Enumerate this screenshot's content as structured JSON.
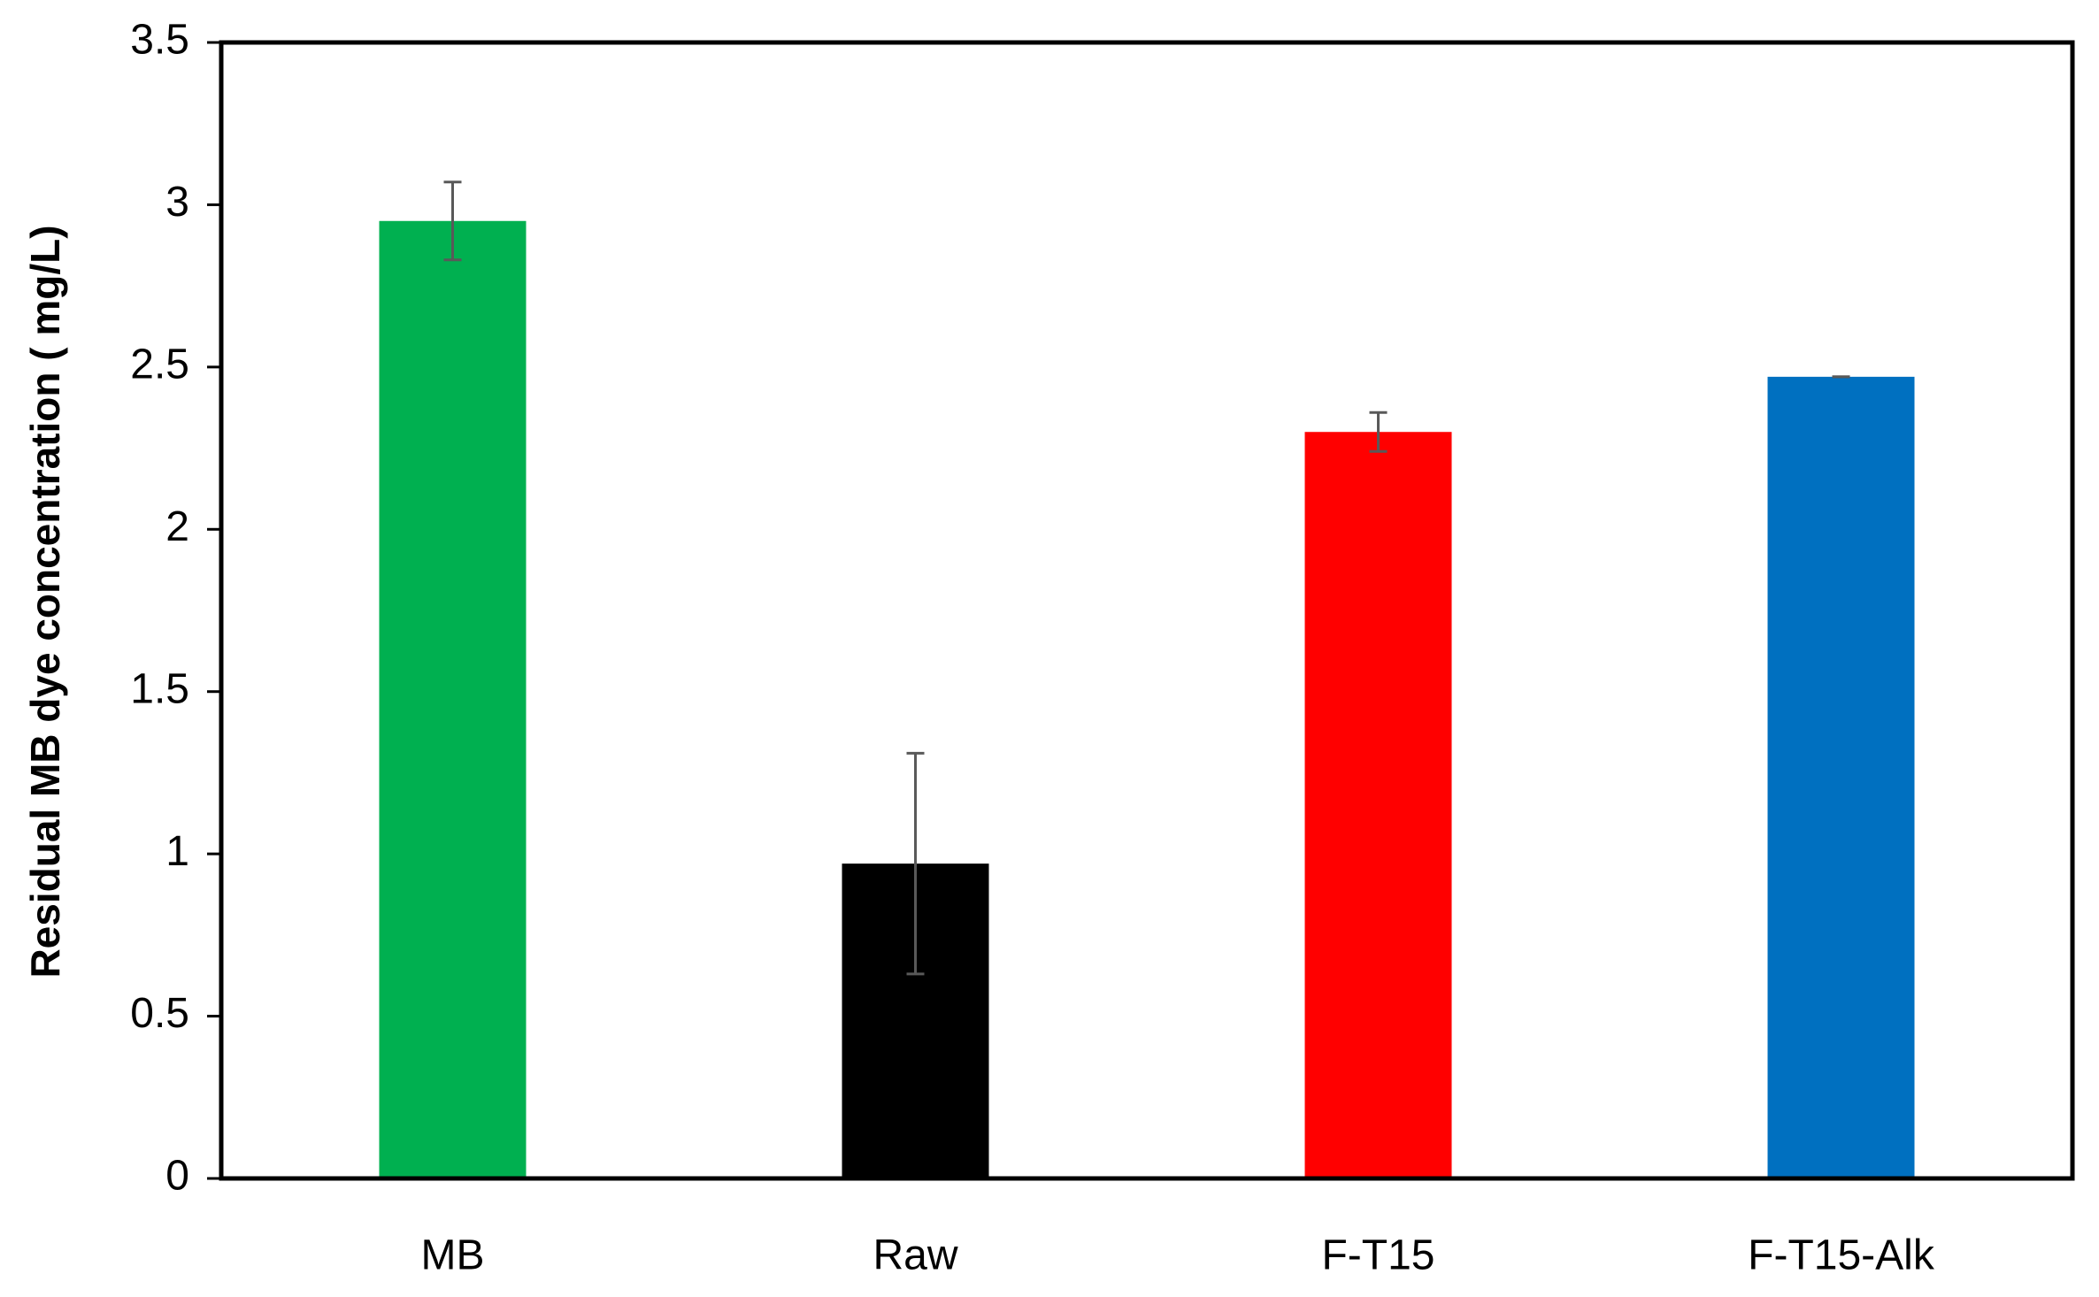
{
  "chart_data": {
    "type": "bar",
    "ylabel": "Residual MB dye concentration ( mg/L)",
    "categories": [
      "MB",
      "Raw",
      "F-T15",
      "F-T15-Alk"
    ],
    "values": [
      2.95,
      0.97,
      2.3,
      2.47
    ],
    "errors": [
      0.12,
      0.34,
      0.06,
      0
    ],
    "colors": [
      "#00b050",
      "#000000",
      "#ff0000",
      "#0070c0"
    ],
    "error_color": "#595959",
    "ylim": [
      0,
      3.5
    ],
    "yticks": [
      0,
      0.5,
      1,
      1.5,
      2,
      2.5,
      3,
      3.5
    ],
    "grid": false
  }
}
